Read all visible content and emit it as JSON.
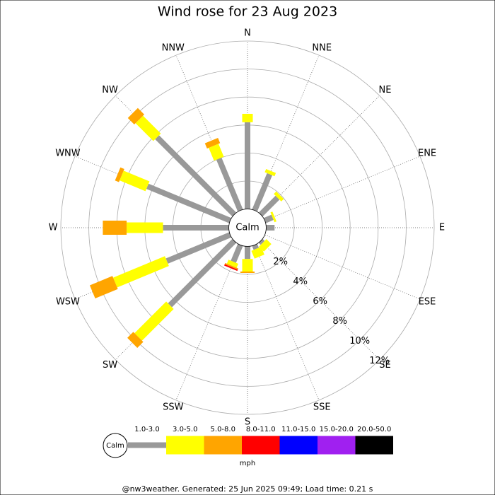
{
  "chart_data": {
    "type": "windrose",
    "title": "Wind rose for 23 Aug 2023",
    "categories": [
      "N",
      "NNE",
      "NE",
      "ENE",
      "E",
      "ESE",
      "SE",
      "SSE",
      "S",
      "SSW",
      "SW",
      "WSW",
      "W",
      "WNW",
      "NW",
      "NNW"
    ],
    "calm_label": "Calm",
    "unit": "mph",
    "rlim": [
      0,
      12
    ],
    "rticks": [
      {
        "value": 2,
        "label": "2%"
      },
      {
        "value": 4,
        "label": "4%"
      },
      {
        "value": 6,
        "label": "6%"
      },
      {
        "value": 8,
        "label": "8%"
      },
      {
        "value": 10,
        "label": "10%"
      },
      {
        "value": 12,
        "label": "12%"
      }
    ],
    "series": [
      {
        "name": "1.0-3.0",
        "color": "#999999",
        "values": [
          6.2,
          2.8,
          1.7,
          0.6,
          0.6,
          0,
          0.2,
          0.3,
          0.9,
          1.3,
          6.5,
          4.9,
          4.7,
          6.4,
          7.8,
          4.0
        ]
      },
      {
        "name": "3.0-5.0",
        "color": "#ffff00",
        "values": [
          0.6,
          0.25,
          0.25,
          0.15,
          0,
          0,
          0.5,
          0.6,
          0.9,
          0.3,
          3.2,
          4.0,
          2.6,
          2.0,
          1.8,
          1.0
        ]
      },
      {
        "name": "5.0-8.0",
        "color": "#ffa500",
        "values": [
          0,
          0,
          0,
          0,
          0,
          0,
          0,
          0,
          0.1,
          0.1,
          0.6,
          1.75,
          1.7,
          0.3,
          0.65,
          0.4
        ]
      },
      {
        "name": "8.0-11.0",
        "color": "#ff0000",
        "values": [
          0,
          0,
          0,
          0,
          0,
          0,
          0,
          0,
          0,
          0.1,
          0,
          0,
          0,
          0,
          0,
          0
        ]
      },
      {
        "name": "11.0-15.0",
        "color": "#0000ff",
        "values": [
          0,
          0,
          0,
          0,
          0,
          0,
          0,
          0,
          0,
          0,
          0,
          0,
          0,
          0,
          0,
          0
        ]
      },
      {
        "name": "15.0-20.0",
        "color": "#a020f0",
        "values": [
          0,
          0,
          0,
          0,
          0,
          0,
          0,
          0,
          0,
          0,
          0,
          0,
          0,
          0,
          0,
          0
        ]
      },
      {
        "name": "20.0-50.0",
        "color": "#000000",
        "values": [
          0,
          0,
          0,
          0,
          0,
          0,
          0,
          0,
          0,
          0,
          0,
          0,
          0,
          0,
          0,
          0
        ]
      }
    ],
    "footer": "@nw3weather. Generated: 25 Jun 2025 09:49; Load time: 0.21 s"
  }
}
